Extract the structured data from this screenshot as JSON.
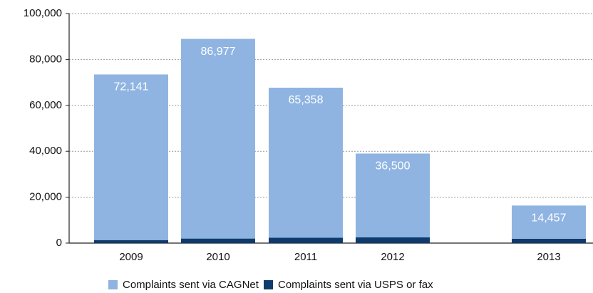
{
  "chart_data": {
    "type": "stacked_bar",
    "categories": [
      "2009",
      "2010",
      "2011",
      "2012",
      "2013"
    ],
    "series": [
      {
        "name": "Complaints sent via USPS or fax",
        "color": "#0d3b6e",
        "values": [
          1323,
          1982,
          2344,
          2500,
          1907
        ],
        "value_labels": [
          "1,323",
          "1,982",
          "2,344",
          "2,500",
          "1,907"
        ]
      },
      {
        "name": "Complaints sent via CAGNet",
        "color": "#8fb4e2",
        "values": [
          72141,
          86977,
          65358,
          36500,
          14457
        ],
        "value_labels": [
          "72,141",
          "86,977",
          "65,358",
          "36,500",
          "14,457"
        ]
      }
    ],
    "ylim": [
      0,
      100000
    ],
    "yticks": [
      0,
      {
        "value": 20000,
        "label": "20,000"
      },
      {
        "value": 40000,
        "label": "40,000"
      },
      {
        "value": 60000,
        "label": "60,000"
      },
      {
        "value": 80000,
        "label": "80,000"
      },
      {
        "value": 100000,
        "label": "100,000"
      }
    ],
    "grid": true
  }
}
